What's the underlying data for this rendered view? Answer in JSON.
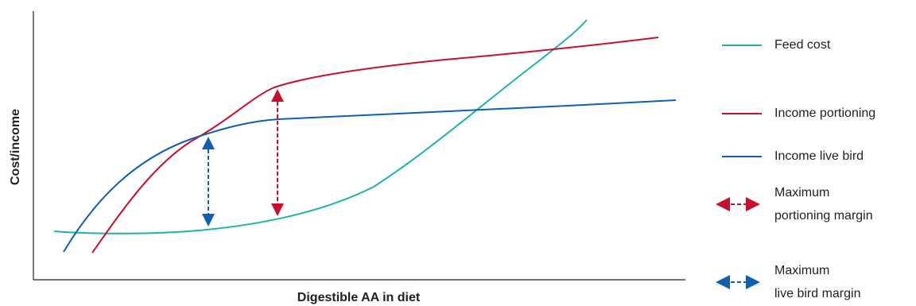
{
  "diagram": {
    "y_axis_label": "Cost/income",
    "x_axis_label": "Digestible AA in diet",
    "legend": [
      {
        "lines": [
          "Feed cost"
        ]
      },
      {
        "lines": [
          "Income portioning"
        ]
      },
      {
        "lines": [
          "Income live bird"
        ]
      },
      {
        "lines": [
          "Maximum",
          "portioning margin"
        ]
      },
      {
        "lines": [
          "Maximum",
          "live bird margin"
        ]
      }
    ]
  }
}
